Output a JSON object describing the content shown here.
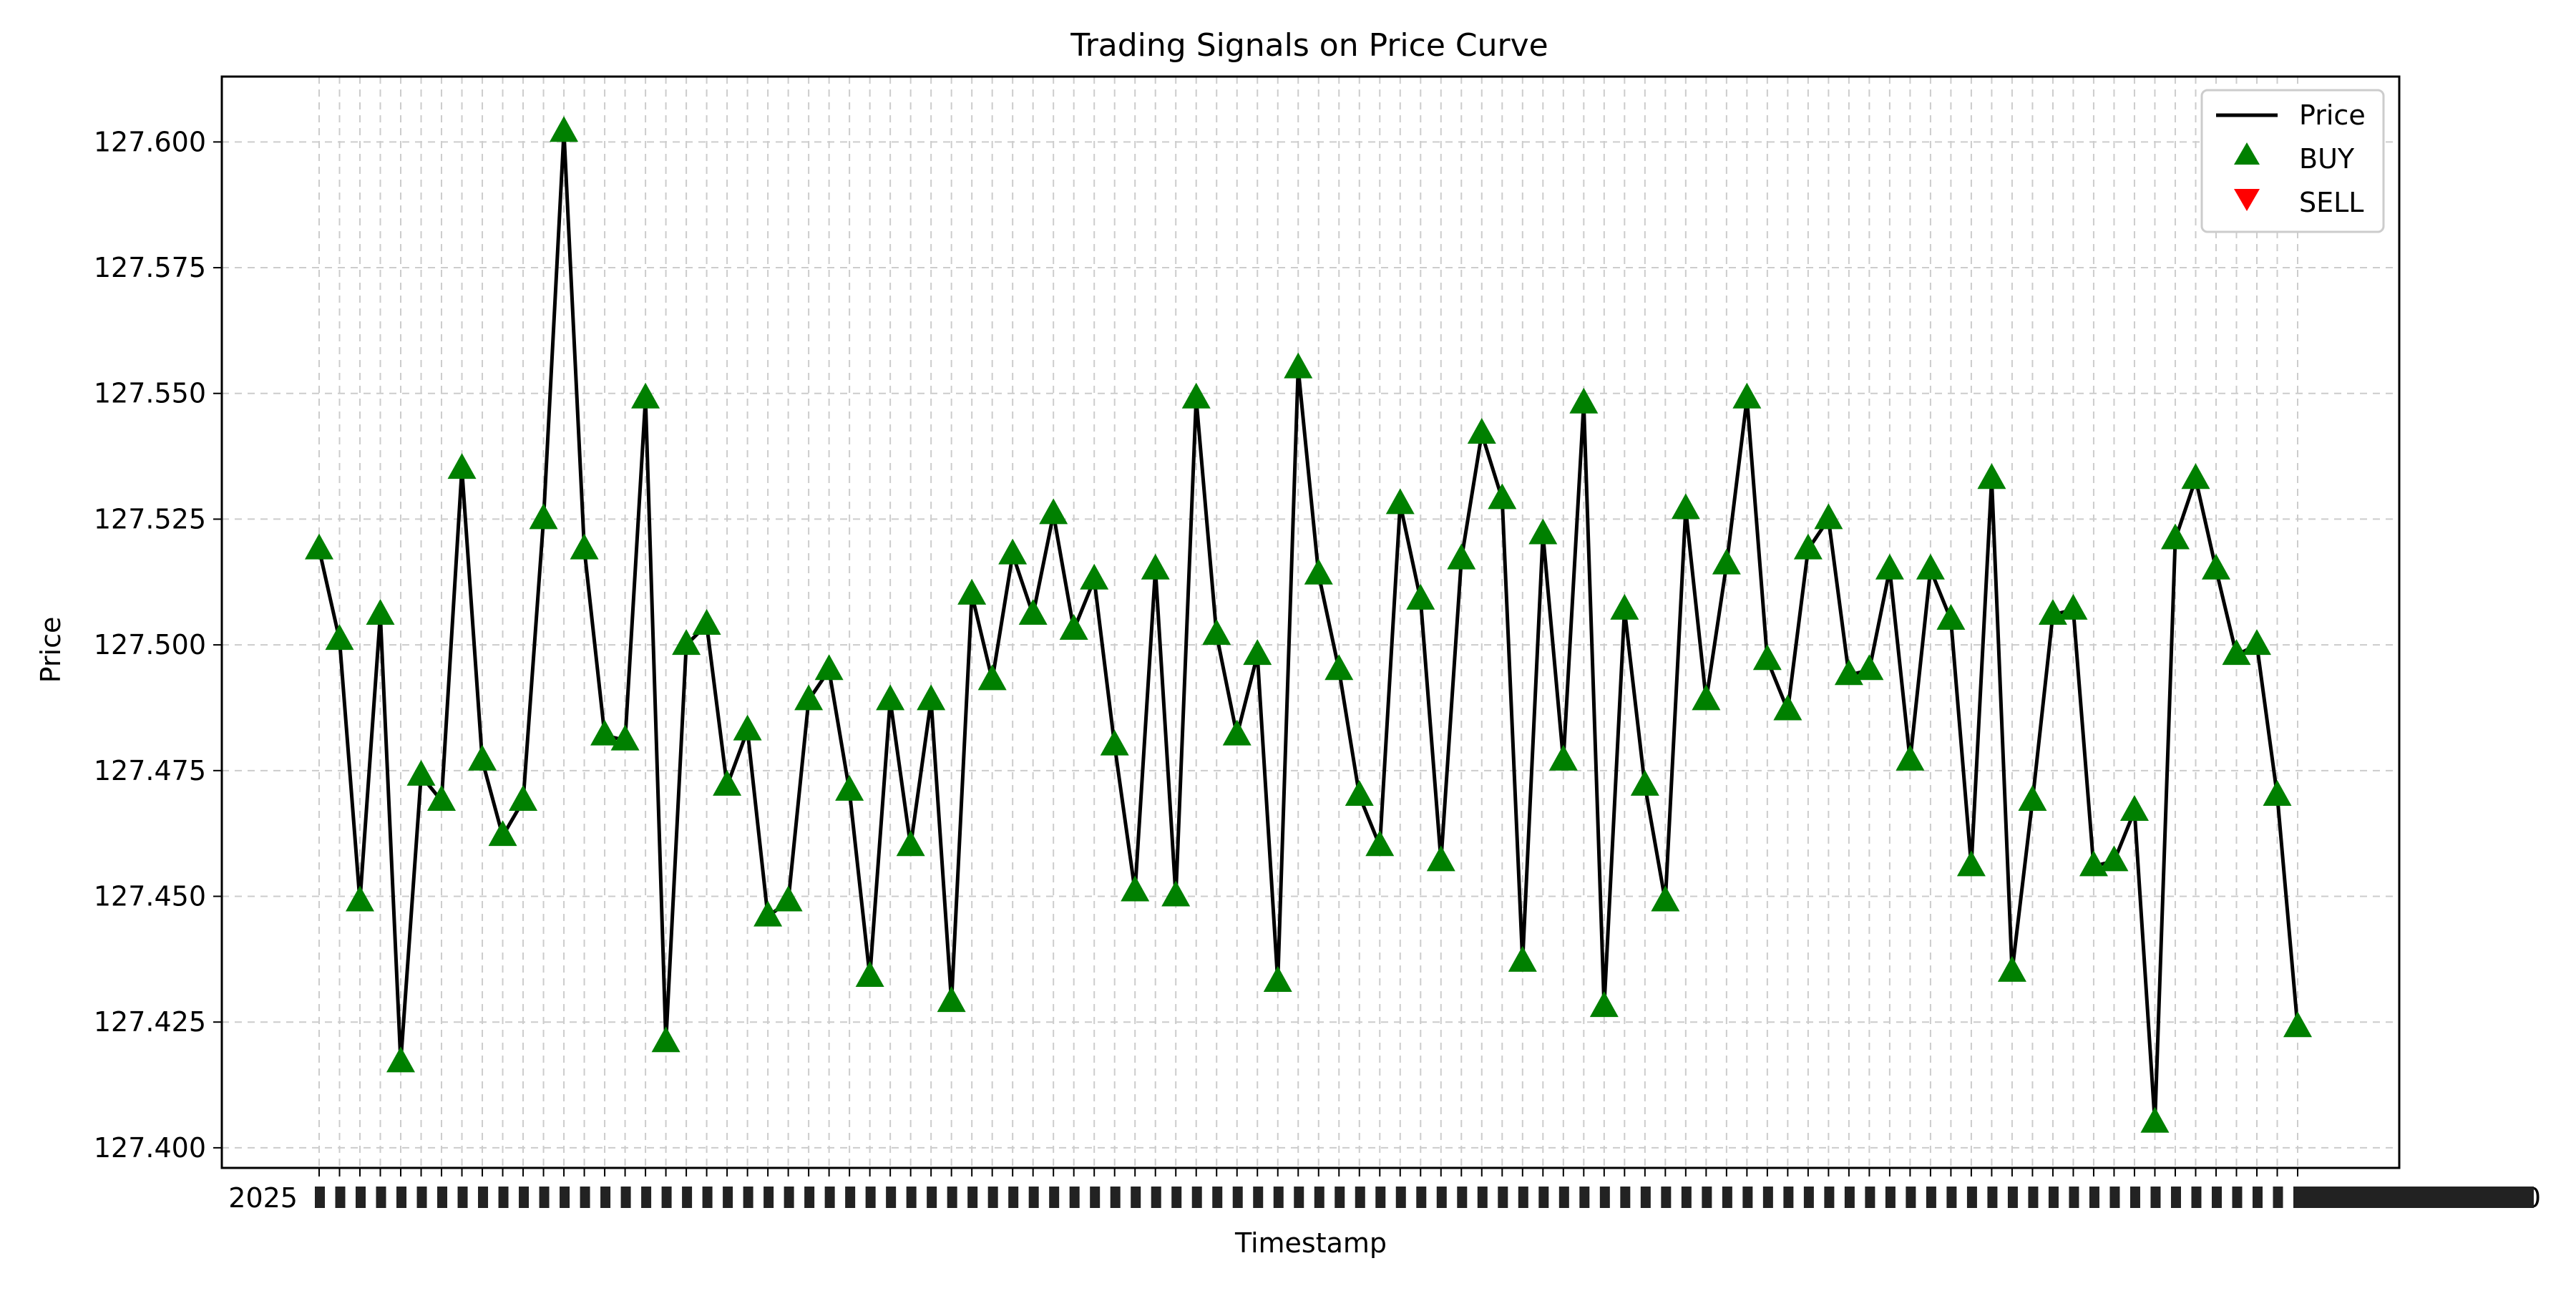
{
  "chart_data": {
    "type": "line",
    "title": "Trading Signals on Price Curve",
    "xlabel": "Timestamp",
    "ylabel": "Price",
    "ylim": [
      127.396,
      127.613
    ],
    "y_ticks": [
      "127.400",
      "127.425",
      "127.450",
      "127.475",
      "127.500",
      "127.525",
      "127.550",
      "127.575",
      "127.600"
    ],
    "x_tick_note": "overlapping timestamp labels beginning with 2025",
    "x_tick_first_label": "2025",
    "x_tick_last_label": "410",
    "grid": true,
    "legend": {
      "position": "top-right",
      "entries": [
        {
          "name": "Price",
          "marker": "line",
          "color": "#000000"
        },
        {
          "name": "BUY",
          "marker": "triangle-up",
          "color": "#008000"
        },
        {
          "name": "SELL",
          "marker": "triangle-down",
          "color": "#ff0000"
        }
      ]
    },
    "series": [
      {
        "name": "Price",
        "values": [
          127.519,
          127.501,
          127.449,
          127.506,
          127.417,
          127.474,
          127.469,
          127.535,
          127.477,
          127.462,
          127.469,
          127.525,
          127.602,
          127.519,
          127.482,
          127.481,
          127.549,
          127.421,
          127.5,
          127.504,
          127.472,
          127.483,
          127.446,
          127.449,
          127.489,
          127.495,
          127.471,
          127.434,
          127.489,
          127.46,
          127.489,
          127.429,
          127.51,
          127.493,
          127.518,
          127.506,
          127.526,
          127.503,
          127.513,
          127.48,
          127.451,
          127.515,
          127.45,
          127.549,
          127.502,
          127.482,
          127.498,
          127.433,
          127.555,
          127.514,
          127.495,
          127.47,
          127.46,
          127.528,
          127.509,
          127.457,
          127.517,
          127.542,
          127.529,
          127.437,
          127.522,
          127.477,
          127.548,
          127.428,
          127.507,
          127.472,
          127.449,
          127.527,
          127.489,
          127.516,
          127.549,
          127.497,
          127.487,
          127.519,
          127.525,
          127.494,
          127.495,
          127.515,
          127.477,
          127.515,
          127.505,
          127.456,
          127.533,
          127.435,
          127.469,
          127.506,
          127.507,
          127.456,
          127.457,
          127.467,
          127.405,
          127.521,
          127.533,
          127.515,
          127.498,
          127.5,
          127.47,
          127.424
        ]
      }
    ],
    "signals": {
      "BUY": "all points",
      "SELL": "none"
    },
    "colors": {
      "line": "#000000",
      "buy": "#008000",
      "sell": "#ff0000",
      "grid": "#cccccc"
    }
  }
}
